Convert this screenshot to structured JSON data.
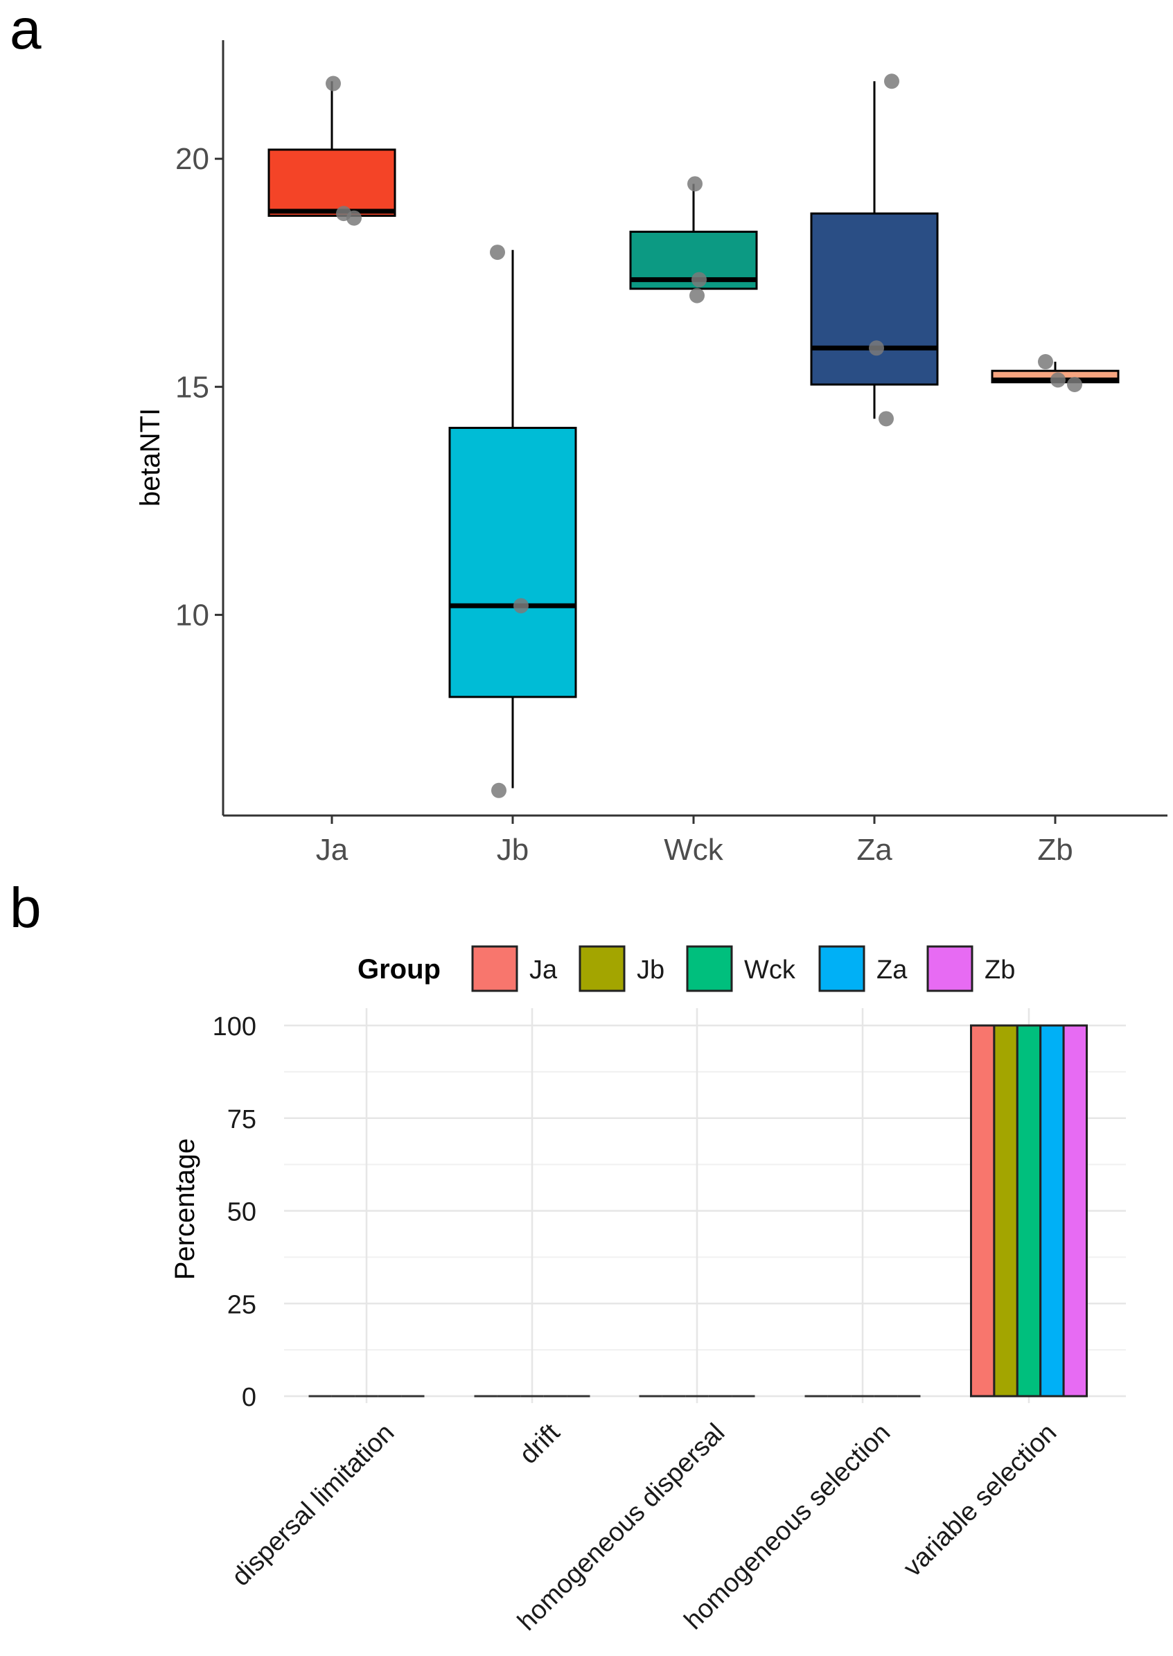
{
  "chart_data": [
    {
      "panel": "a",
      "type": "box",
      "ylabel": "betaNTI",
      "xlabel": "",
      "ylim": [
        5.6,
        22.6
      ],
      "yticks": [
        10,
        15,
        20
      ],
      "grid": false,
      "categories": [
        "Ja",
        "Jb",
        "Wck",
        "Za",
        "Zb"
      ],
      "colors": [
        "#F44427",
        "#00BCD6",
        "#0C9A83",
        "#2A4E85",
        "#F7A580"
      ],
      "boxes": [
        {
          "group": "Ja",
          "whisker_low": 18.75,
          "q1": 18.75,
          "median": 18.85,
          "q3": 20.2,
          "whisker_high": 21.7
        },
        {
          "group": "Jb",
          "whisker_low": 6.2,
          "q1": 8.2,
          "median": 10.2,
          "q3": 14.1,
          "whisker_high": 18.0
        },
        {
          "group": "Wck",
          "whisker_low": 17.15,
          "q1": 17.15,
          "median": 17.35,
          "q3": 18.4,
          "whisker_high": 19.45
        },
        {
          "group": "Za",
          "whisker_low": 14.3,
          "q1": 15.05,
          "median": 15.85,
          "q3": 18.8,
          "whisker_high": 21.7
        },
        {
          "group": "Zb",
          "whisker_low": 15.1,
          "q1": 15.1,
          "median": 15.15,
          "q3": 15.35,
          "whisker_high": 15.55
        }
      ],
      "points": [
        {
          "group": "Ja",
          "values": [
            21.65,
            18.8,
            18.7
          ]
        },
        {
          "group": "Jb",
          "values": [
            17.95,
            10.2,
            6.15
          ]
        },
        {
          "group": "Wck",
          "values": [
            19.45,
            17.35,
            17.0
          ]
        },
        {
          "group": "Za",
          "values": [
            21.7,
            15.85,
            14.3
          ]
        },
        {
          "group": "Zb",
          "values": [
            15.55,
            15.15,
            15.05
          ]
        }
      ]
    },
    {
      "panel": "b",
      "type": "bar",
      "ylabel": "Percentage",
      "xlabel": "",
      "ylim": [
        0,
        100
      ],
      "yticks": [
        0,
        25,
        50,
        75,
        100
      ],
      "grid": true,
      "legend_title": "Group",
      "legend_position": "top",
      "categories": [
        "dispersal limitation",
        "drift",
        "homogeneous dispersal",
        "homogeneous selection",
        "variable selection"
      ],
      "series": [
        {
          "name": "Ja",
          "color": "#F8766D",
          "values": [
            0,
            0,
            0,
            0,
            100
          ]
        },
        {
          "name": "Jb",
          "color": "#A3A500",
          "values": [
            0,
            0,
            0,
            0,
            100
          ]
        },
        {
          "name": "Wck",
          "color": "#00BF7D",
          "values": [
            0,
            0,
            0,
            0,
            100
          ]
        },
        {
          "name": "Za",
          "color": "#00B0F6",
          "values": [
            0,
            0,
            0,
            0,
            100
          ]
        },
        {
          "name": "Zb",
          "color": "#E76BF3",
          "values": [
            0,
            0,
            0,
            0,
            100
          ]
        }
      ]
    }
  ],
  "labels": {
    "panel_a": "a",
    "panel_b": "b"
  }
}
